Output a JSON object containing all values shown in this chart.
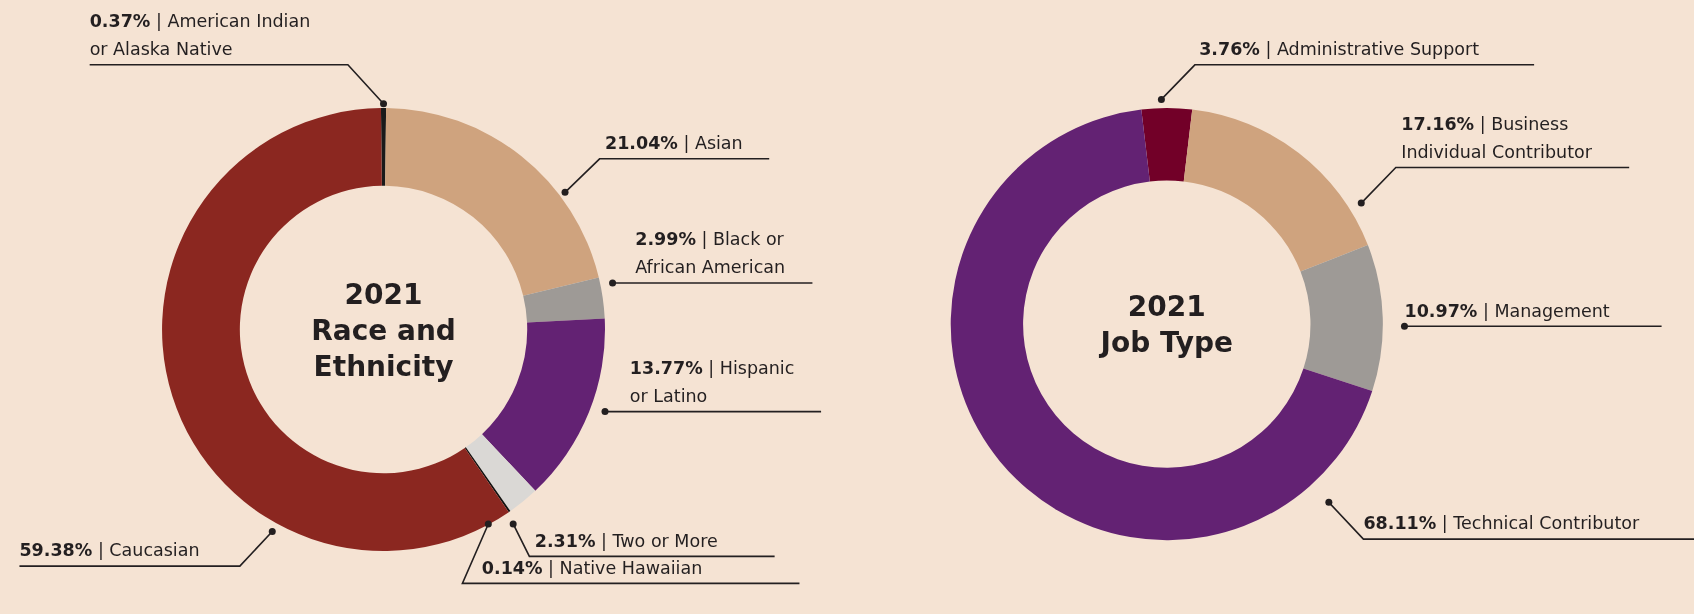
{
  "chart_data": [
    {
      "type": "donut",
      "title": "2021 Race and Ethnicity",
      "categories": [
        "American Indian or Alaska Native",
        "Asian",
        "Black or African American",
        "Hispanic or Latino",
        "Two or More",
        "Native Hawaiian",
        "Caucasian"
      ],
      "values": [
        0.37,
        21.04,
        2.99,
        13.77,
        2.31,
        0.14,
        59.38
      ],
      "value_labels": [
        "0.37% |",
        "21.04% |",
        "2.99% |",
        "13.77% |",
        "2.31% |",
        "0.14% |",
        "59.38% |"
      ],
      "colors": [
        "#1a1a1a",
        "#cfa37e",
        "#9e9a96",
        "#632273",
        "#dad8d5",
        "#111111",
        "#8b2720"
      ]
    },
    {
      "type": "donut",
      "title": "2021 Job Type",
      "categories": [
        "Administrative Support",
        "Business Individual Contributor",
        "Management",
        "Technical Contributor"
      ],
      "values": [
        3.76,
        17.16,
        10.97,
        68.11
      ],
      "value_labels": [
        "3.76% |",
        "17.16% |",
        "10.97% |",
        "68.11% |"
      ],
      "colors": [
        "#720028",
        "#cfa37e",
        "#9e9a96",
        "#632273"
      ]
    }
  ]
}
